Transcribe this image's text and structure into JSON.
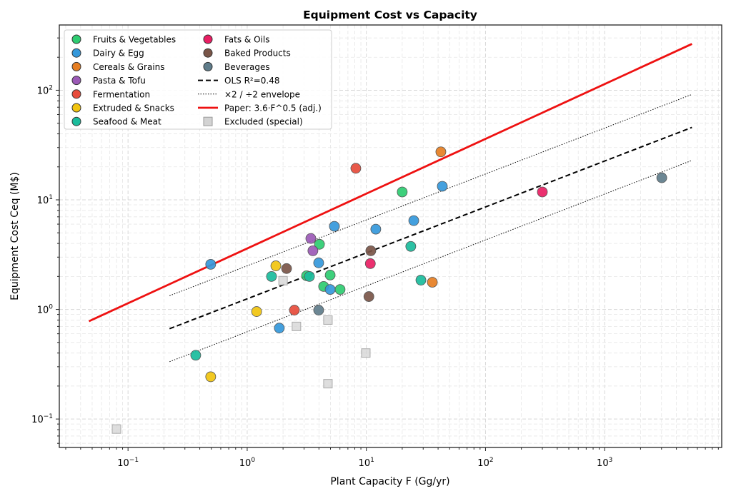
{
  "chart_data": {
    "type": "scatter",
    "title": "Equipment Cost vs Capacity",
    "xlabel": "Plant Capacity  F  (Gg/yr)",
    "ylabel": "Equipment Cost  Ceq  (M$)",
    "xscale": "log",
    "yscale": "log",
    "xlim": [
      0.0265,
      9600
    ],
    "ylim": [
      0.055,
      394
    ],
    "grid": true,
    "legend_position": "top-left",
    "legend_columns": 2,
    "x_ticks": [
      {
        "value": 0.1,
        "base": "10",
        "exp": "−1"
      },
      {
        "value": 1,
        "base": "10",
        "exp": "0"
      },
      {
        "value": 10,
        "base": "10",
        "exp": "1"
      },
      {
        "value": 100,
        "base": "10",
        "exp": "2"
      },
      {
        "value": 1000,
        "base": "10",
        "exp": "3"
      }
    ],
    "y_ticks": [
      {
        "value": 0.1,
        "base": "10",
        "exp": "−1"
      },
      {
        "value": 1,
        "base": "10",
        "exp": "0"
      },
      {
        "value": 10,
        "base": "10",
        "exp": "1"
      },
      {
        "value": 100,
        "base": "10",
        "exp": "2"
      }
    ],
    "series": [
      {
        "name": "Fruits & Vegetables",
        "color": "#2ecc71",
        "marker": "circle",
        "points": [
          [
            4.04,
            3.93
          ],
          [
            3.15,
            2.03
          ],
          [
            4.97,
            2.06
          ],
          [
            4.38,
            1.62
          ],
          [
            6.02,
            1.52
          ],
          [
            20.0,
            11.8
          ]
        ]
      },
      {
        "name": "Dairy & Egg",
        "color": "#3498db",
        "marker": "circle",
        "points": [
          [
            0.494,
            2.58
          ],
          [
            5.39,
            5.73
          ],
          [
            12.0,
            5.4
          ],
          [
            3.98,
            2.66
          ],
          [
            4.97,
            1.52
          ],
          [
            1.86,
            0.676
          ],
          [
            25.0,
            6.46
          ],
          [
            43.4,
            13.3
          ]
        ]
      },
      {
        "name": "Cereals & Grains",
        "color": "#e67e22",
        "marker": "circle",
        "points": [
          [
            42.2,
            27.4
          ],
          [
            35.8,
            1.77
          ]
        ]
      },
      {
        "name": "Pasta & Tofu",
        "color": "#9b59b6",
        "marker": "circle",
        "points": [
          [
            3.42,
            4.44
          ],
          [
            3.56,
            3.43
          ]
        ]
      },
      {
        "name": "Fermentation",
        "color": "#e74c3c",
        "marker": "circle",
        "points": [
          [
            8.16,
            19.4
          ],
          [
            2.49,
            0.985
          ]
        ]
      },
      {
        "name": "Extruded & Snacks",
        "color": "#f1c40f",
        "marker": "circle",
        "points": [
          [
            1.74,
            2.5
          ],
          [
            1.2,
            0.956
          ],
          [
            0.494,
            0.243
          ]
        ]
      },
      {
        "name": "Seafood & Meat",
        "color": "#1abc9c",
        "marker": "circle",
        "points": [
          [
            1.6,
            2.0
          ],
          [
            3.33,
            2.0
          ],
          [
            23.6,
            3.76
          ],
          [
            28.7,
            1.85
          ],
          [
            0.37,
            0.382
          ]
        ]
      },
      {
        "name": "Fats & Oils",
        "color": "#e91e63",
        "marker": "circle",
        "points": [
          [
            10.8,
            2.62
          ],
          [
            300,
            11.8
          ]
        ]
      },
      {
        "name": "Baked Products",
        "color": "#795548",
        "marker": "circle",
        "points": [
          [
            2.14,
            2.36
          ],
          [
            10.9,
            3.43
          ],
          [
            10.5,
            1.31
          ]
        ]
      },
      {
        "name": "Beverages",
        "color": "#607d8b",
        "marker": "circle",
        "points": [
          [
            3.98,
            0.985
          ],
          [
            3015,
            15.9
          ]
        ]
      },
      {
        "name": "Excluded (special)",
        "color": "#d3d3d3",
        "marker": "square",
        "points": [
          [
            2.0,
            1.83
          ],
          [
            2.59,
            0.7
          ],
          [
            4.76,
            0.8
          ],
          [
            9.9,
            0.4
          ],
          [
            4.76,
            0.21
          ],
          [
            0.08,
            0.081
          ]
        ]
      }
    ],
    "lines": [
      {
        "name": "OLS  R²=0.48",
        "style": "dashed",
        "color": "#000000",
        "a": 1.25,
        "b": 0.419,
        "x_range": [
          0.223,
          5400
        ]
      },
      {
        "name": "×2 / ÷2 envelope",
        "style": "dotted",
        "color": "#000000",
        "a": 1.25,
        "b": 0.419,
        "factors": [
          2,
          0.5
        ],
        "x_range": [
          0.223,
          5400
        ]
      },
      {
        "name": "Paper: 3.6·F^0.5  (adj.)",
        "style": "solid",
        "color": "#ee1111",
        "a": 3.6,
        "b": 0.5,
        "x_range": [
          0.047,
          5400
        ]
      }
    ],
    "legend": [
      {
        "label": "Fruits & Vegetables",
        "type": "circle",
        "color": "#2ecc71"
      },
      {
        "label": "Dairy & Egg",
        "type": "circle",
        "color": "#3498db"
      },
      {
        "label": "Cereals & Grains",
        "type": "circle",
        "color": "#e67e22"
      },
      {
        "label": "Pasta & Tofu",
        "type": "circle",
        "color": "#9b59b6"
      },
      {
        "label": "Fermentation",
        "type": "circle",
        "color": "#e74c3c"
      },
      {
        "label": "Extruded & Snacks",
        "type": "circle",
        "color": "#f1c40f"
      },
      {
        "label": "Seafood & Meat",
        "type": "circle",
        "color": "#1abc9c"
      },
      {
        "label": "Fats & Oils",
        "type": "circle",
        "color": "#e91e63"
      },
      {
        "label": "Baked Products",
        "type": "circle",
        "color": "#795548"
      },
      {
        "label": "Beverages",
        "type": "circle",
        "color": "#607d8b"
      },
      {
        "label": "OLS  R²=0.48",
        "type": "dashed",
        "color": "#000000"
      },
      {
        "label": "×2 / ÷2 envelope",
        "type": "dotted",
        "color": "#000000"
      },
      {
        "label": "Paper: 3.6·F^0.5  (adj.)",
        "type": "solid",
        "color": "#ee1111"
      },
      {
        "label": "Excluded (special)",
        "type": "square",
        "color": "#d3d3d3"
      }
    ]
  }
}
